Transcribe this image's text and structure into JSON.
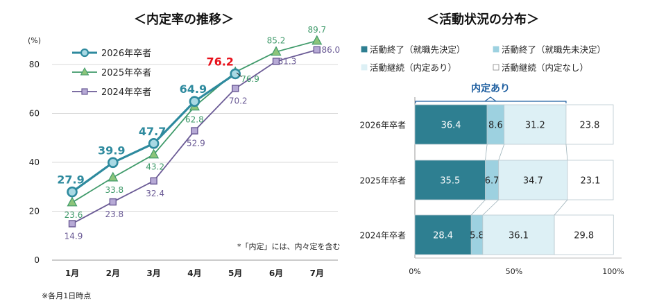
{
  "line_chart_title": "＜内定率の推移＞",
  "bar_chart_title": "＜活動状況の分布＞",
  "line_note": "*「内定」には、内々定を含む",
  "footnote": "※各月1日時点",
  "colors": {
    "teal": "#2E8A9E",
    "green": "#3F9A6A",
    "purple": "#6A5A95",
    "seg1": "#2E7F91",
    "seg2": "#9DD1E0",
    "seg3": "#DDF0F5",
    "seg4": "#FFFFFF",
    "grid": "#D9D9D9",
    "highlight": "#E8101A"
  },
  "chart_data": [
    {
      "type": "line",
      "title": "＜内定率の推移＞",
      "ylabel": "(%)",
      "ylim": [
        0,
        90
      ],
      "yticks": [
        "0",
        "20",
        "40",
        "60",
        "80"
      ],
      "categories": [
        "1月",
        "2月",
        "3月",
        "4月",
        "5月",
        "6月",
        "7月"
      ],
      "legend_position": "top-left",
      "series": [
        {
          "name": "2026年卒者",
          "values": [
            27.9,
            39.9,
            47.7,
            64.9,
            76.2,
            null,
            null
          ],
          "labels": [
            "27.9",
            "39.9",
            "47.7",
            "64.9",
            "76.2",
            "",
            ""
          ]
        },
        {
          "name": "2025年卒者",
          "values": [
            23.6,
            33.8,
            43.2,
            62.8,
            76.9,
            85.2,
            89.7
          ],
          "labels": [
            "23.6",
            "33.8",
            "43.2",
            "62.8",
            "76.9",
            "85.2",
            "89.7"
          ]
        },
        {
          "name": "2024年卒者",
          "values": [
            14.9,
            23.8,
            32.4,
            52.9,
            70.2,
            81.3,
            86.0
          ],
          "labels": [
            "14.9",
            "23.8",
            "32.4",
            "52.9",
            "70.2",
            "81.3",
            "86.0"
          ]
        }
      ]
    },
    {
      "type": "bar",
      "orientation": "horizontal-stacked",
      "title": "＜活動状況の分布＞",
      "categories": [
        "2026年卒者",
        "2025年卒者",
        "2024年卒者"
      ],
      "xlim": [
        0,
        100
      ],
      "xticks": [
        "0%",
        "50%",
        "100%"
      ],
      "bracket_label": "内定あり",
      "legend_position": "top",
      "series": [
        {
          "name": "活動終了（就職先決定）",
          "values": [
            36.4,
            35.5,
            28.4
          ],
          "labels": [
            "36.4",
            "35.5",
            "28.4"
          ]
        },
        {
          "name": "活動終了（就職先未決定）",
          "values": [
            8.6,
            6.7,
            5.8
          ],
          "labels": [
            "8.6",
            "6.7",
            "5.8"
          ]
        },
        {
          "name": "活動継続（内定あり）",
          "values": [
            31.2,
            34.7,
            36.1
          ],
          "labels": [
            "31.2",
            "34.7",
            "36.1"
          ]
        },
        {
          "name": "活動継続（内定なし）",
          "values": [
            23.8,
            23.1,
            29.8
          ],
          "labels": [
            "23.8",
            "23.1",
            "29.8"
          ]
        }
      ]
    }
  ]
}
